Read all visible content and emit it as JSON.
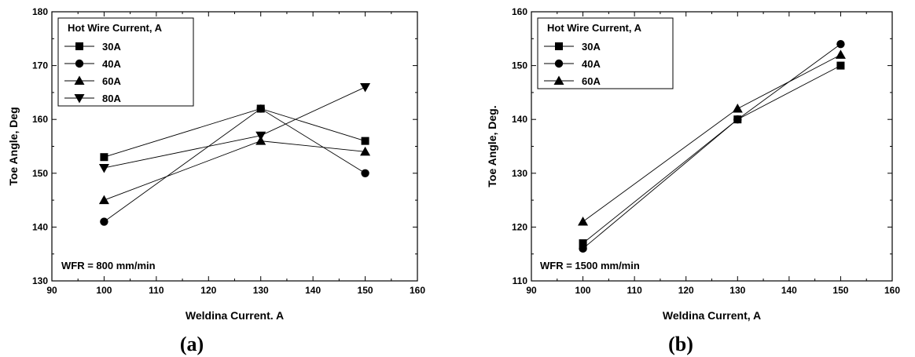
{
  "chart_data": [
    {
      "type": "line",
      "panel_label": "(a)",
      "xlabel": "Weldina Current. A",
      "ylabel": "Toe Angle, Deg",
      "xlim": [
        90,
        160
      ],
      "ylim": [
        130,
        180
      ],
      "xticks": [
        90,
        100,
        110,
        120,
        130,
        140,
        150,
        160
      ],
      "yticks": [
        130,
        140,
        150,
        160,
        170,
        180
      ],
      "annotation": "WFR = 800 mm/min",
      "legend": {
        "title": "Hot Wire Current, A",
        "placement": "top-left"
      },
      "x": [
        100,
        130,
        150
      ],
      "series": [
        {
          "name": "30A",
          "marker": "square",
          "values": [
            153,
            162,
            156
          ]
        },
        {
          "name": "40A",
          "marker": "circle",
          "values": [
            141,
            162,
            150
          ]
        },
        {
          "name": "60A",
          "marker": "triangle-up",
          "values": [
            145,
            156,
            154
          ]
        },
        {
          "name": "80A",
          "marker": "triangle-down",
          "values": [
            151,
            157,
            166
          ]
        }
      ]
    },
    {
      "type": "line",
      "panel_label": "(b)",
      "xlabel": "Weldina Current, A",
      "ylabel": "Toe Angle, Deg.",
      "xlim": [
        90,
        160
      ],
      "ylim": [
        110,
        160
      ],
      "xticks": [
        90,
        100,
        110,
        120,
        130,
        140,
        150,
        160
      ],
      "yticks": [
        110,
        120,
        130,
        140,
        150,
        160
      ],
      "annotation": "WFR = 1500 mm/min",
      "legend": {
        "title": "Hot Wire Current, A",
        "placement": "top-left"
      },
      "x": [
        100,
        130,
        150
      ],
      "series": [
        {
          "name": "30A",
          "marker": "square",
          "values": [
            117,
            140,
            150
          ]
        },
        {
          "name": "40A",
          "marker": "circle",
          "values": [
            116,
            140,
            154
          ]
        },
        {
          "name": "60A",
          "marker": "triangle-up",
          "values": [
            121,
            142,
            152
          ]
        }
      ]
    }
  ]
}
